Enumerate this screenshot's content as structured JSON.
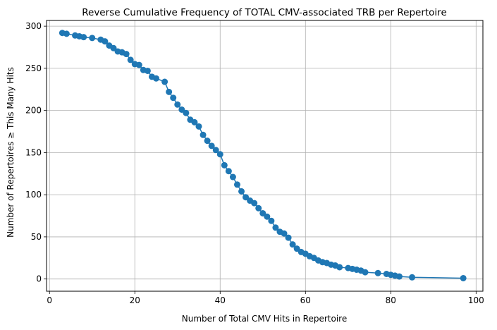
{
  "chart_data": {
    "type": "line",
    "title": "Reverse Cumulative Frequency of TOTAL CMV-associated TRB per Repertoire",
    "xlabel": "Number of Total CMV Hits in Repertoire",
    "ylabel": "Number of Repertoires ≥ This Many Hits",
    "xlim": [
      -0.7,
      101.6
    ],
    "ylim": [
      -14.5,
      306.8
    ],
    "xticks": [
      0,
      20,
      40,
      60,
      80,
      100
    ],
    "yticks": [
      0,
      50,
      100,
      150,
      200,
      250,
      300
    ],
    "grid": true,
    "color": "#1f77b4",
    "marker": "circle",
    "series": [
      {
        "x": [
          3,
          4,
          6,
          7,
          8,
          10,
          12,
          13,
          14,
          15,
          16,
          17,
          18,
          19,
          20,
          21,
          22,
          23,
          24,
          25,
          27,
          28,
          29,
          30,
          31,
          32,
          33,
          34,
          35,
          36,
          37,
          38,
          39,
          40,
          41,
          42,
          43,
          44,
          45,
          46,
          47,
          48,
          49,
          50,
          51,
          52,
          53,
          54,
          55,
          56,
          57,
          58,
          59,
          60,
          61,
          62,
          63,
          64,
          65,
          66,
          67,
          68,
          70,
          71,
          72,
          73,
          74,
          77,
          79,
          80,
          81,
          82,
          85,
          97
        ],
        "y": [
          292,
          291,
          289,
          288,
          287,
          286,
          284,
          282,
          277,
          274,
          270,
          269,
          267,
          260,
          255,
          254,
          248,
          247,
          240,
          238,
          234,
          222,
          215,
          207,
          201,
          197,
          189,
          186,
          181,
          171,
          164,
          158,
          153,
          148,
          135,
          128,
          121,
          112,
          104,
          97,
          93,
          90,
          84,
          78,
          74,
          69,
          61,
          56,
          54,
          49,
          41,
          36,
          32,
          30,
          27,
          25,
          22,
          20,
          19,
          17,
          16,
          14,
          13,
          12,
          11,
          10,
          8,
          7,
          6,
          5,
          4,
          3,
          2,
          1
        ]
      }
    ]
  }
}
